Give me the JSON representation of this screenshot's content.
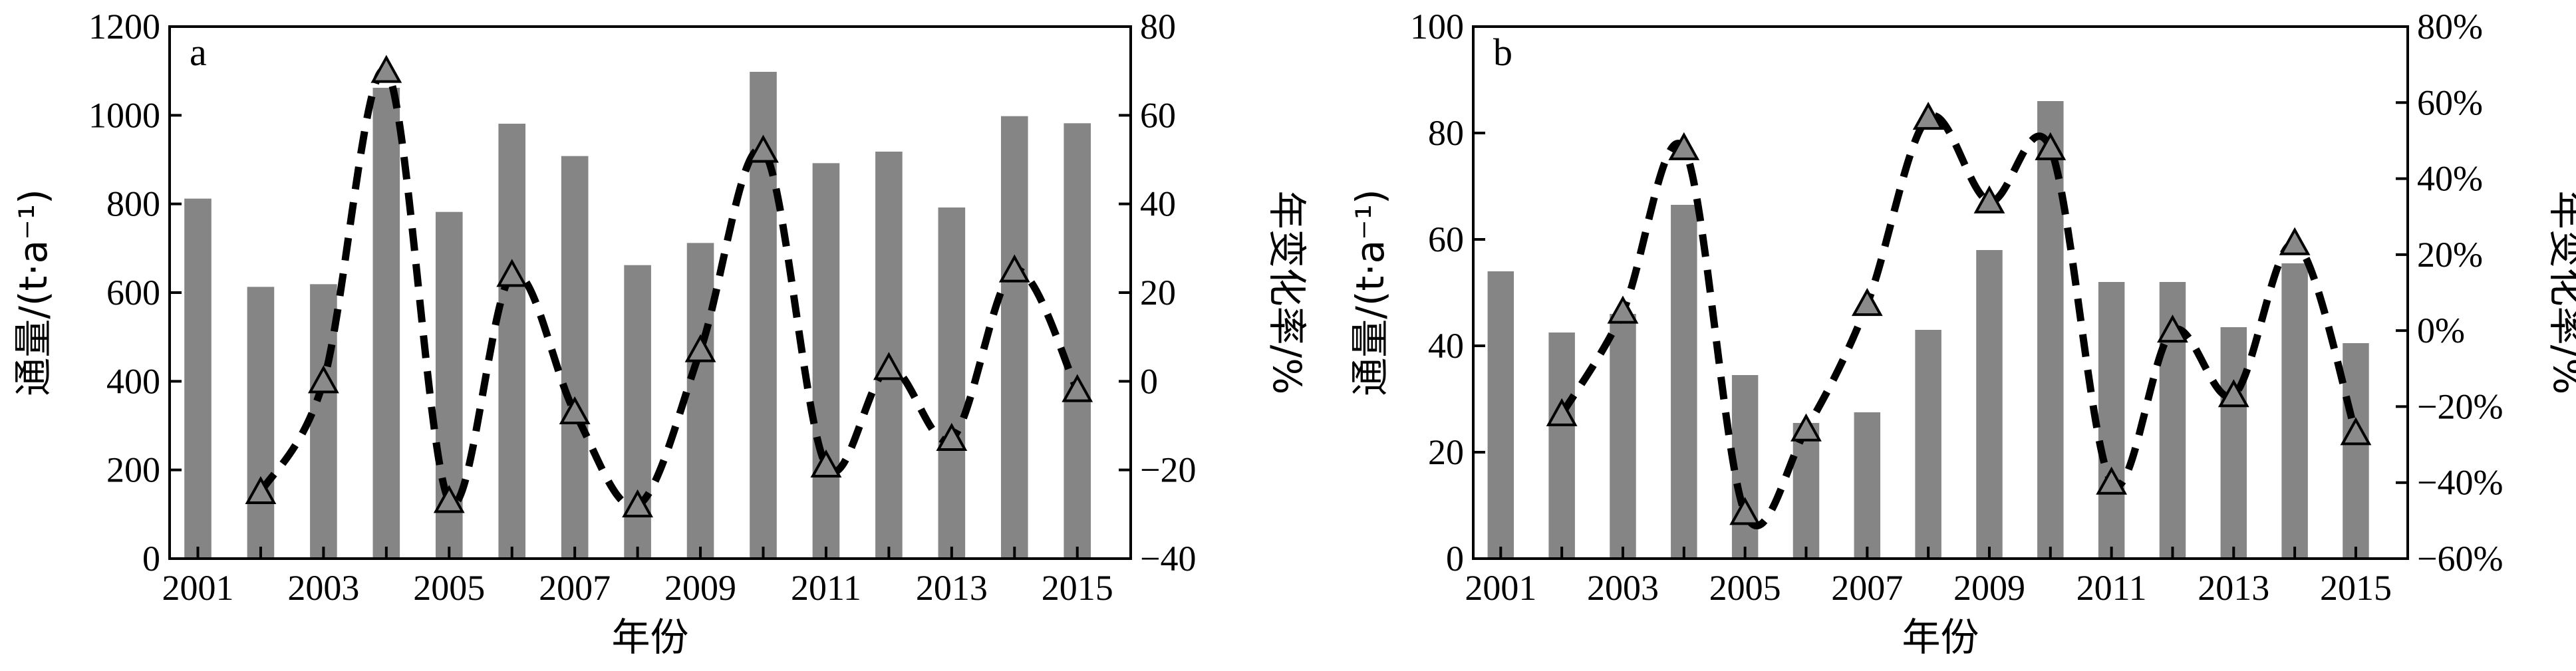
{
  "chart_data": [
    {
      "type": "bar",
      "panel_label": "a",
      "xlabel": "年份",
      "ylabel": "通量/(t·a⁻¹)",
      "y2label": "年变化率/%",
      "ylim": [
        0,
        1200
      ],
      "y2lim": [
        -40,
        80
      ],
      "yticks": [
        "0",
        "200",
        "400",
        "600",
        "800",
        "1000",
        "1200"
      ],
      "y2ticks": [
        "−40",
        "−20",
        "0",
        "20",
        "40",
        "60",
        "80"
      ],
      "xticks": [
        "2001",
        "2003",
        "2005",
        "2007",
        "2009",
        "2011",
        "2013",
        "2015"
      ],
      "colors": {
        "bar": "#858585",
        "marker": "#8a8a8a",
        "line": "#000000"
      },
      "bars": {
        "x": [
          2001,
          2002,
          2003,
          2004,
          2005,
          2006,
          2007,
          2008,
          2009,
          2010,
          2011,
          2012,
          2013,
          2014,
          2015
        ],
        "values": [
          812,
          613,
          619,
          1062,
          782,
          981,
          908,
          662,
          712,
          1098,
          892,
          918,
          792,
          998,
          982
        ]
      },
      "change_rate": {
        "x": [
          2002,
          2003,
          2004,
          2005,
          2006,
          2007,
          2008,
          2009,
          2010,
          2011,
          2012,
          2013,
          2014,
          2015
        ],
        "values": [
          -25,
          0,
          70,
          -27,
          24,
          -7,
          -28,
          7,
          52,
          -19,
          3,
          -13,
          25,
          -2
        ]
      }
    },
    {
      "type": "bar",
      "panel_label": "b",
      "xlabel": "年份",
      "ylabel": "通量/(t·a⁻¹)",
      "y2label": "年变化率/%",
      "ylim": [
        0,
        100
      ],
      "y2lim": [
        -60,
        80
      ],
      "yticks": [
        "0",
        "20",
        "40",
        "60",
        "80",
        "100"
      ],
      "y2ticks": [
        "−60%",
        "−40%",
        "−20%",
        "0%",
        "20%",
        "40%",
        "60%",
        "80%"
      ],
      "xticks": [
        "2001",
        "2003",
        "2005",
        "2007",
        "2009",
        "2011",
        "2013",
        "2015"
      ],
      "colors": {
        "bar": "#858585",
        "marker": "#8a8a8a",
        "line": "#000000"
      },
      "bars": {
        "x": [
          2001,
          2002,
          2003,
          2004,
          2005,
          2006,
          2007,
          2008,
          2009,
          2010,
          2011,
          2012,
          2013,
          2014,
          2015
        ],
        "values": [
          54,
          42.5,
          46,
          66.5,
          34.5,
          25.5,
          27.5,
          43,
          58,
          86,
          52,
          52,
          43.5,
          55.5,
          40.5
        ]
      },
      "change_rate": {
        "x": [
          2002,
          2003,
          2004,
          2005,
          2006,
          2007,
          2008,
          2009,
          2010,
          2011,
          2012,
          2013,
          2014,
          2015
        ],
        "values": [
          -22,
          5,
          48,
          -48,
          -26,
          7,
          56,
          34,
          48,
          -40,
          0,
          -17,
          23,
          -27
        ]
      }
    }
  ]
}
